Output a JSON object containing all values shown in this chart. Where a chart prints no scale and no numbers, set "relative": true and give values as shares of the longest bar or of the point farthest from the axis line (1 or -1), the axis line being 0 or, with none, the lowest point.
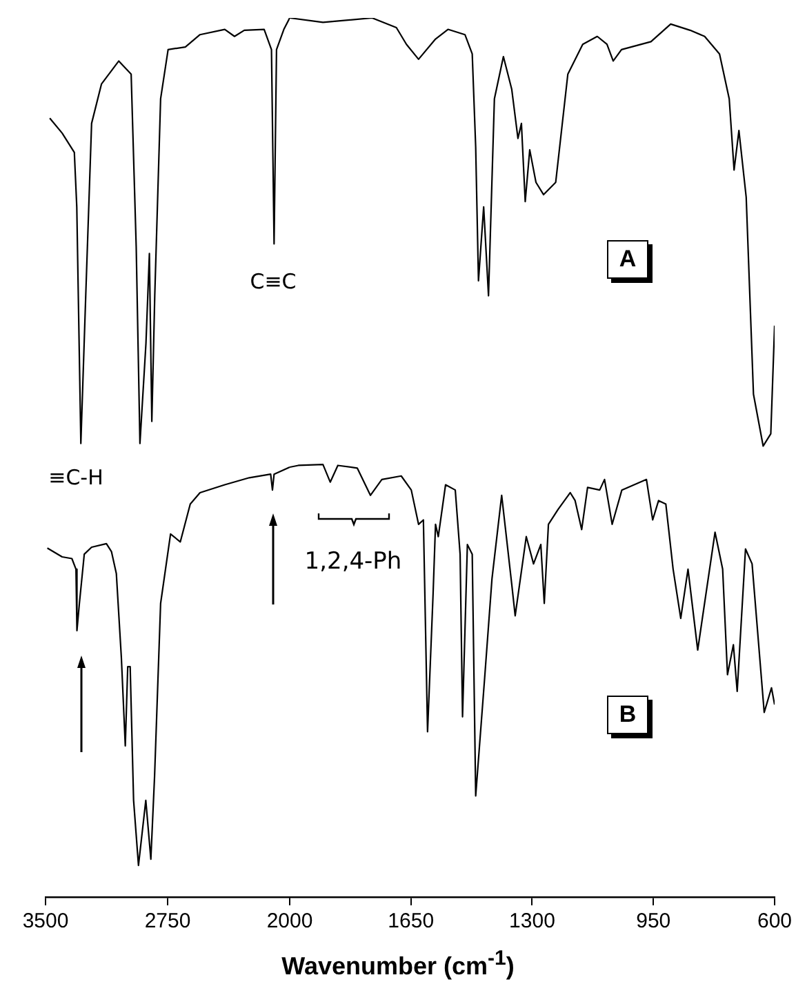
{
  "chart_data": [
    {
      "type": "line",
      "relative": true,
      "xlim": [
        3500,
        2000
      ],
      "xticks": [
        3500,
        2750,
        2000
      ],
      "grid": false,
      "legend": false,
      "annotations": [
        "C≡C",
        "≡C-H"
      ],
      "series": [
        {
          "color": "#000000",
          "x": [
            3474,
            3398,
            3323,
            3308,
            3283,
            3253,
            3217,
            3156,
            3050,
            2974,
            2943,
            2920,
            2883,
            2862,
            2847,
            2829,
            2793,
            2747,
            2641,
            2551,
            2399,
            2339,
            2279,
            2157,
            2112,
            2096,
            2081,
            2036,
            2000
          ],
          "values": [
            0.886,
            0.869,
            0.847,
            0.785,
            0.516,
            0.684,
            0.88,
            0.925,
            0.951,
            0.936,
            0.74,
            0.516,
            0.63,
            0.732,
            0.541,
            0.684,
            0.908,
            0.964,
            0.967,
            0.981,
            0.987,
            0.979,
            0.986,
            0.987,
            0.964,
            0.743,
            0.964,
            0.987,
            1
          ]
        },
        {
          "color": "#000000",
          "x": [
            3489,
            3398,
            3338,
            3313,
            3307,
            3292,
            3262,
            3217,
            3126,
            3095,
            3065,
            3034,
            3010,
            2995,
            2980,
            2959,
            2929,
            2884,
            2853,
            2830,
            2793,
            2732,
            2672,
            2611,
            2551,
            2399,
            2248,
            2117,
            2106,
            2096,
            2000
          ],
          "values": [
            0.397,
            0.387,
            0.385,
            0.373,
            0.303,
            0.334,
            0.39,
            0.398,
            0.402,
            0.393,
            0.368,
            0.272,
            0.172,
            0.262,
            0.262,
            0.11,
            0.036,
            0.11,
            0.043,
            0.138,
            0.334,
            0.413,
            0.404,
            0.447,
            0.46,
            0.469,
            0.477,
            0.481,
            0.463,
            0.481,
            0.489
          ]
        }
      ]
    },
    {
      "type": "line",
      "relative": true,
      "xlabel": "Wavenumber (cm$^{-1}$)",
      "xlim": [
        2000,
        600
      ],
      "xticks": [
        1650,
        1300,
        950,
        600
      ],
      "grid": false,
      "legend": false,
      "annotations": [
        "1,2,4-Ph",
        "A",
        "B"
      ],
      "series": [
        {
          "color": "#000000",
          "x": [
            2000,
            1904,
            1762,
            1692,
            1663,
            1628,
            1579,
            1543,
            1494,
            1473,
            1463,
            1455,
            1440,
            1426,
            1409,
            1383,
            1359,
            1341,
            1331,
            1320,
            1307,
            1289,
            1267,
            1232,
            1197,
            1154,
            1112,
            1084,
            1066,
            1042,
            957,
            900,
            844,
            802,
            759,
            731,
            717,
            703,
            682,
            661,
            633,
            611,
            600
          ],
          "values": [
            1,
            0.995,
            1,
            0.989,
            0.97,
            0.953,
            0.976,
            0.987,
            0.981,
            0.959,
            0.853,
            0.701,
            0.785,
            0.684,
            0.908,
            0.956,
            0.919,
            0.863,
            0.88,
            0.791,
            0.85,
            0.813,
            0.799,
            0.813,
            0.936,
            0.97,
            0.979,
            0.97,
            0.951,
            0.964,
            0.973,
            0.993,
            0.986,
            0.979,
            0.959,
            0.908,
            0.827,
            0.872,
            0.796,
            0.572,
            0.513,
            0.527,
            0.65
          ]
        },
        {
          "color": "#000000",
          "x": [
            2000,
            1975,
            1904,
            1883,
            1861,
            1805,
            1767,
            1734,
            1678,
            1649,
            1628,
            1614,
            1602,
            1586,
            1579,
            1571,
            1550,
            1522,
            1508,
            1501,
            1487,
            1473,
            1463,
            1437,
            1416,
            1388,
            1359,
            1349,
            1317,
            1296,
            1275,
            1265,
            1253,
            1225,
            1190,
            1176,
            1157,
            1140,
            1105,
            1091,
            1069,
            1041,
            970,
            952,
            935,
            914,
            893,
            871,
            850,
            822,
            772,
            750,
            736,
            719,
            708,
            684,
            665,
            630,
            609,
            600
          ],
          "values": [
            0.489,
            0.491,
            0.492,
            0.472,
            0.491,
            0.488,
            0.457,
            0.475,
            0.479,
            0.463,
            0.424,
            0.429,
            0.188,
            0.345,
            0.424,
            0.41,
            0.469,
            0.463,
            0.39,
            0.205,
            0.401,
            0.39,
            0.115,
            0.25,
            0.362,
            0.457,
            0.356,
            0.32,
            0.41,
            0.379,
            0.401,
            0.334,
            0.424,
            0.441,
            0.46,
            0.451,
            0.418,
            0.466,
            0.463,
            0.475,
            0.424,
            0.463,
            0.475,
            0.429,
            0.451,
            0.447,
            0.373,
            0.317,
            0.373,
            0.281,
            0.415,
            0.373,
            0.253,
            0.287,
            0.234,
            0.396,
            0.379,
            0.21,
            0.238,
            0.219
          ]
        }
      ]
    }
  ]
}
